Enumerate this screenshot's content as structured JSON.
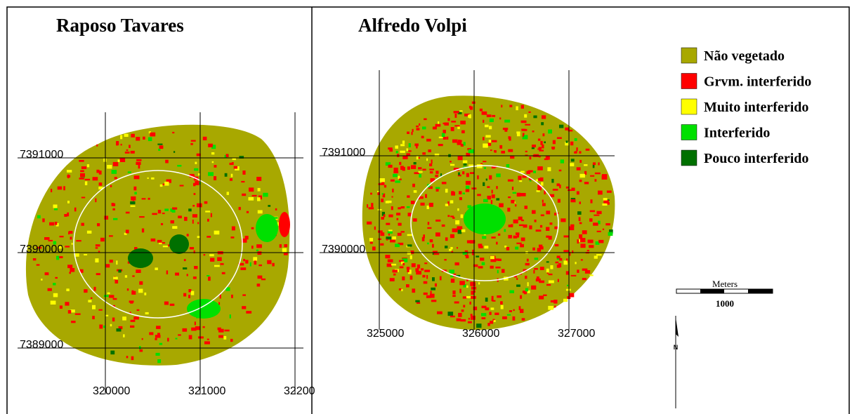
{
  "maps": [
    {
      "title": "Raposo Tavares",
      "x_labels": [
        "320000",
        "321000",
        "32200"
      ],
      "y_labels": [
        "7391000",
        "7390000",
        "7389000"
      ]
    },
    {
      "title": "Alfredo Volpi",
      "x_labels": [
        "325000",
        "326000",
        "327000"
      ],
      "y_labels": [
        "7391000",
        "7390000"
      ]
    }
  ],
  "legend": {
    "items": [
      {
        "label": "Não vegetado",
        "color": "#a8a800"
      },
      {
        "label": "Grvm. interferido",
        "color": "#ff0000"
      },
      {
        "label": "Muito interferido",
        "color": "#ffff00"
      },
      {
        "label": "Interferido",
        "color": "#00e000"
      },
      {
        "label": "Pouco interferido",
        "color": "#007000"
      }
    ]
  },
  "scale_bar": {
    "title": "Meters",
    "label": "1000"
  },
  "north_arrow": "N"
}
